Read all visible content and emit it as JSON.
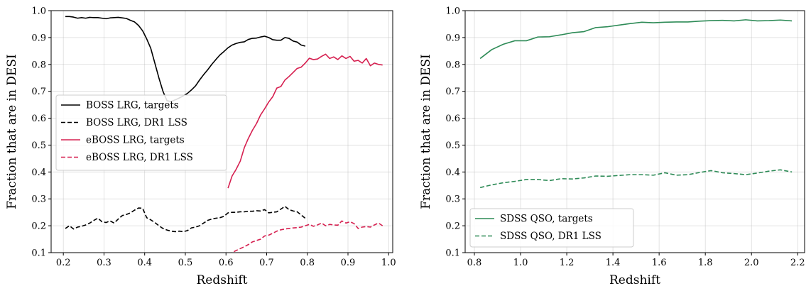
{
  "chart_data": [
    {
      "type": "line",
      "xlabel": "Redshift",
      "ylabel": "Fraction that are in DESI",
      "xlim": [
        0.17,
        1.01
      ],
      "ylim": [
        0.1,
        1.0
      ],
      "xticks": [
        "0.2",
        "0.3",
        "0.4",
        "0.5",
        "0.6",
        "0.7",
        "0.8",
        "0.9",
        "1.0"
      ],
      "yticks": [
        "0.1",
        "0.2",
        "0.3",
        "0.4",
        "0.5",
        "0.6",
        "0.7",
        "0.8",
        "0.9",
        "1.0"
      ],
      "grid": true,
      "legend_position": "center-left",
      "series": [
        {
          "name": "BOSS LRG, targets",
          "color": "#000000",
          "style": "solid",
          "x": [
            0.205,
            0.215,
            0.225,
            0.235,
            0.245,
            0.255,
            0.265,
            0.275,
            0.285,
            0.295,
            0.305,
            0.315,
            0.325,
            0.335,
            0.345,
            0.355,
            0.365,
            0.375,
            0.385,
            0.395,
            0.405,
            0.415,
            0.425,
            0.435,
            0.445,
            0.455,
            0.465,
            0.475,
            0.485,
            0.495,
            0.505,
            0.515,
            0.525,
            0.535,
            0.545,
            0.555,
            0.565,
            0.575,
            0.585,
            0.595,
            0.605,
            0.615,
            0.625,
            0.635,
            0.645,
            0.655,
            0.665,
            0.675,
            0.685,
            0.695,
            0.705,
            0.715,
            0.725,
            0.735,
            0.745,
            0.755,
            0.765,
            0.775,
            0.785,
            0.795
          ],
          "y": [
            0.978,
            0.978,
            0.976,
            0.972,
            0.974,
            0.972,
            0.975,
            0.974,
            0.974,
            0.972,
            0.97,
            0.973,
            0.974,
            0.975,
            0.973,
            0.971,
            0.964,
            0.958,
            0.945,
            0.925,
            0.895,
            0.86,
            0.805,
            0.75,
            0.7,
            0.665,
            0.662,
            0.668,
            0.675,
            0.683,
            0.692,
            0.705,
            0.72,
            0.742,
            0.762,
            0.78,
            0.8,
            0.818,
            0.835,
            0.848,
            0.862,
            0.872,
            0.878,
            0.882,
            0.884,
            0.893,
            0.897,
            0.898,
            0.902,
            0.905,
            0.9,
            0.892,
            0.89,
            0.89,
            0.9,
            0.897,
            0.887,
            0.883,
            0.872,
            0.868
          ]
        },
        {
          "name": "BOSS LRG, DR1 LSS",
          "color": "#000000",
          "style": "dashed",
          "x": [
            0.205,
            0.215,
            0.225,
            0.235,
            0.245,
            0.255,
            0.265,
            0.275,
            0.285,
            0.295,
            0.305,
            0.315,
            0.325,
            0.335,
            0.345,
            0.355,
            0.365,
            0.375,
            0.385,
            0.395,
            0.405,
            0.415,
            0.425,
            0.435,
            0.445,
            0.455,
            0.465,
            0.475,
            0.485,
            0.495,
            0.505,
            0.515,
            0.525,
            0.535,
            0.545,
            0.555,
            0.565,
            0.575,
            0.585,
            0.595,
            0.605,
            0.615,
            0.625,
            0.635,
            0.645,
            0.655,
            0.665,
            0.675,
            0.685,
            0.695,
            0.705,
            0.715,
            0.725,
            0.735,
            0.745,
            0.755,
            0.765,
            0.775,
            0.785,
            0.795
          ],
          "y": [
            0.19,
            0.2,
            0.188,
            0.195,
            0.198,
            0.203,
            0.21,
            0.22,
            0.228,
            0.215,
            0.212,
            0.218,
            0.21,
            0.225,
            0.238,
            0.242,
            0.248,
            0.258,
            0.266,
            0.265,
            0.23,
            0.222,
            0.212,
            0.2,
            0.19,
            0.184,
            0.18,
            0.178,
            0.18,
            0.178,
            0.182,
            0.192,
            0.195,
            0.2,
            0.21,
            0.22,
            0.225,
            0.228,
            0.23,
            0.235,
            0.248,
            0.25,
            0.25,
            0.252,
            0.252,
            0.254,
            0.254,
            0.256,
            0.255,
            0.26,
            0.248,
            0.25,
            0.252,
            0.262,
            0.272,
            0.26,
            0.255,
            0.252,
            0.24,
            0.228
          ]
        },
        {
          "name": "eBOSS LRG, targets",
          "color": "#d62050",
          "style": "solid",
          "x": [
            0.605,
            0.615,
            0.625,
            0.635,
            0.645,
            0.655,
            0.665,
            0.675,
            0.685,
            0.695,
            0.705,
            0.715,
            0.725,
            0.735,
            0.745,
            0.755,
            0.765,
            0.775,
            0.785,
            0.795,
            0.805,
            0.815,
            0.825,
            0.835,
            0.845,
            0.855,
            0.865,
            0.875,
            0.885,
            0.895,
            0.905,
            0.915,
            0.925,
            0.935,
            0.945,
            0.955,
            0.965,
            0.975,
            0.985
          ],
          "y": [
            0.34,
            0.385,
            0.41,
            0.44,
            0.49,
            0.525,
            0.555,
            0.58,
            0.612,
            0.635,
            0.66,
            0.68,
            0.712,
            0.718,
            0.742,
            0.755,
            0.77,
            0.785,
            0.79,
            0.805,
            0.823,
            0.818,
            0.82,
            0.83,
            0.838,
            0.822,
            0.828,
            0.818,
            0.832,
            0.822,
            0.83,
            0.812,
            0.815,
            0.805,
            0.822,
            0.795,
            0.805,
            0.8,
            0.798
          ]
        },
        {
          "name": "eBOSS LRG, DR1 LSS",
          "color": "#d62050",
          "style": "dashed",
          "x": [
            0.605,
            0.615,
            0.625,
            0.635,
            0.645,
            0.655,
            0.665,
            0.675,
            0.685,
            0.695,
            0.705,
            0.715,
            0.725,
            0.735,
            0.745,
            0.755,
            0.765,
            0.775,
            0.785,
            0.795,
            0.805,
            0.815,
            0.825,
            0.835,
            0.845,
            0.855,
            0.865,
            0.875,
            0.885,
            0.895,
            0.905,
            0.915,
            0.925,
            0.935,
            0.945,
            0.955,
            0.965,
            0.975,
            0.985
          ],
          "y": [
            0.095,
            0.1,
            0.108,
            0.115,
            0.122,
            0.13,
            0.14,
            0.145,
            0.15,
            0.162,
            0.165,
            0.172,
            0.18,
            0.185,
            0.188,
            0.19,
            0.192,
            0.193,
            0.195,
            0.2,
            0.205,
            0.198,
            0.203,
            0.21,
            0.2,
            0.205,
            0.203,
            0.202,
            0.218,
            0.21,
            0.215,
            0.208,
            0.19,
            0.195,
            0.197,
            0.195,
            0.203,
            0.21,
            0.2
          ]
        }
      ],
      "legend": [
        "BOSS LRG, targets",
        "BOSS LRG, DR1 LSS",
        "eBOSS LRG, targets",
        "eBOSS LRG, DR1 LSS"
      ]
    },
    {
      "type": "line",
      "xlabel": "Redshift",
      "ylabel": "Fraction that are in DESI",
      "xlim": [
        0.76,
        2.23
      ],
      "ylim": [
        0.1,
        1.0
      ],
      "xticks": [
        "0.8",
        "1.0",
        "1.2",
        "1.4",
        "1.6",
        "1.8",
        "2.0",
        "2.2"
      ],
      "yticks": [
        "0.1",
        "0.2",
        "0.3",
        "0.4",
        "0.5",
        "0.6",
        "0.7",
        "0.8",
        "0.9",
        "1.0"
      ],
      "grid": true,
      "legend_position": "bottom-left",
      "series": [
        {
          "name": "SDSS QSO, targets",
          "color": "#2e8b57",
          "style": "solid",
          "x": [
            0.825,
            0.875,
            0.925,
            0.975,
            1.025,
            1.075,
            1.125,
            1.175,
            1.225,
            1.275,
            1.325,
            1.375,
            1.425,
            1.475,
            1.525,
            1.575,
            1.625,
            1.675,
            1.725,
            1.775,
            1.825,
            1.875,
            1.925,
            1.975,
            2.025,
            2.075,
            2.125,
            2.175
          ],
          "y": [
            0.822,
            0.855,
            0.875,
            0.888,
            0.888,
            0.902,
            0.903,
            0.91,
            0.918,
            0.922,
            0.937,
            0.94,
            0.946,
            0.952,
            0.957,
            0.955,
            0.957,
            0.958,
            0.958,
            0.961,
            0.963,
            0.964,
            0.962,
            0.966,
            0.962,
            0.963,
            0.965,
            0.962
          ]
        },
        {
          "name": "SDSS QSO, DR1 LSS",
          "color": "#2e8b57",
          "style": "dashed",
          "x": [
            0.825,
            0.875,
            0.925,
            0.975,
            1.025,
            1.075,
            1.125,
            1.175,
            1.225,
            1.275,
            1.325,
            1.375,
            1.425,
            1.475,
            1.525,
            1.575,
            1.625,
            1.675,
            1.725,
            1.775,
            1.825,
            1.875,
            1.925,
            1.975,
            2.025,
            2.075,
            2.125,
            2.175
          ],
          "y": [
            0.342,
            0.352,
            0.36,
            0.365,
            0.372,
            0.372,
            0.368,
            0.375,
            0.374,
            0.378,
            0.385,
            0.384,
            0.387,
            0.39,
            0.39,
            0.388,
            0.397,
            0.388,
            0.39,
            0.398,
            0.405,
            0.397,
            0.394,
            0.39,
            0.396,
            0.403,
            0.408,
            0.4
          ]
        }
      ],
      "legend": [
        "SDSS QSO, targets",
        "SDSS QSO, DR1 LSS"
      ]
    }
  ]
}
